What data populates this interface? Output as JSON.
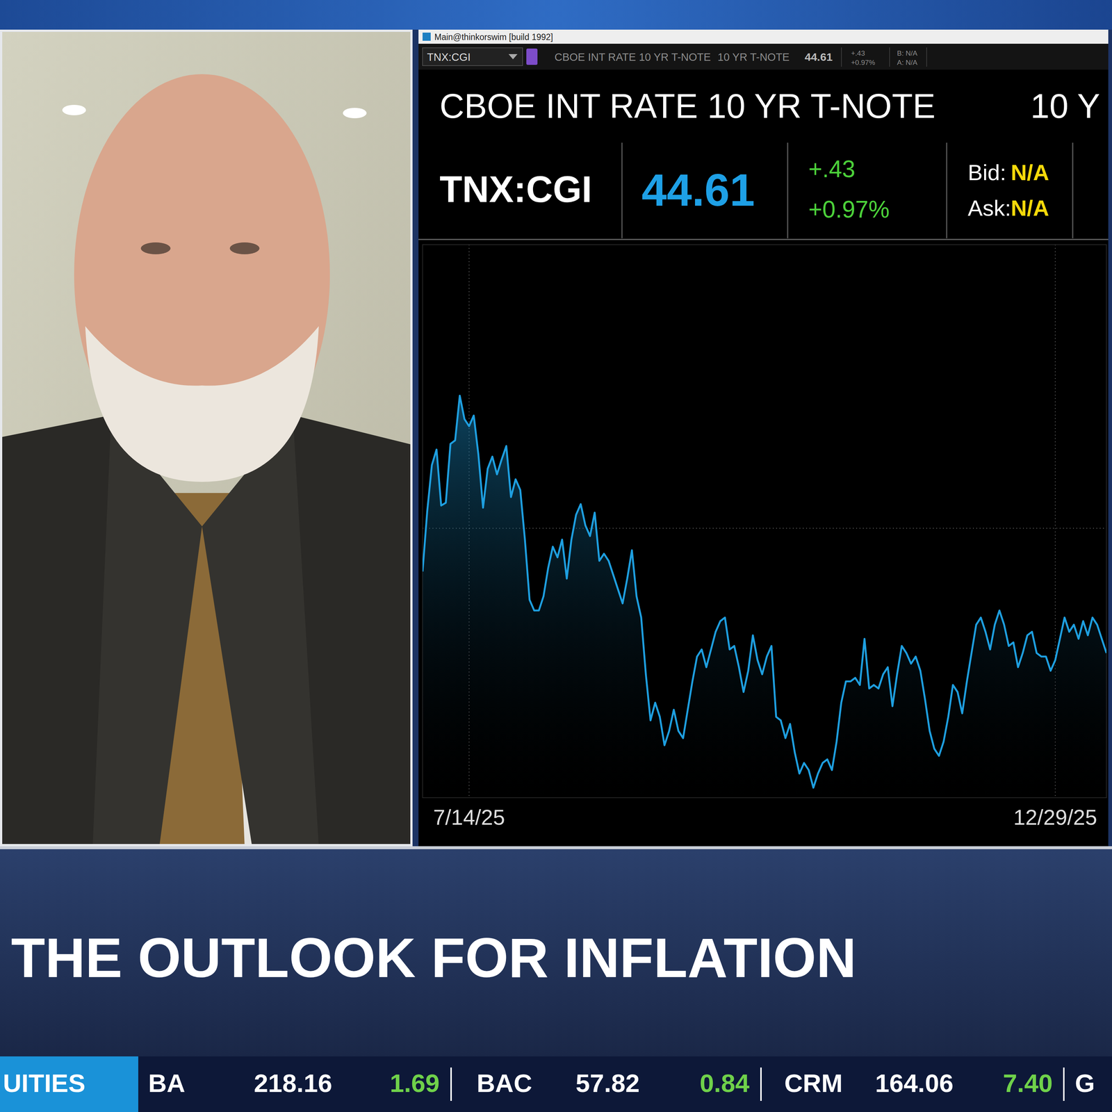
{
  "window": {
    "title": "Main@thinkorswim [build 1992]"
  },
  "toolbar": {
    "symbol": "TNX:CGI",
    "description": "CBOE INT RATE 10 YR T-NOTE",
    "short_name": "10 YR T-NOTE",
    "last": 44.61,
    "change": "+.43",
    "change_pct": "+0.97%",
    "bid": "B: N/A",
    "ask": "A: N/A"
  },
  "quote": {
    "title": "CBOE INT RATE 10 YR T-NOTE",
    "title_right": "10 Y",
    "symbol": "TNX:CGI",
    "last": 44.61,
    "change": "+.43",
    "change_pct": "+0.97%",
    "bid_label": "Bid:",
    "bid": "N/A",
    "ask_label": "Ask:",
    "ask": "N/A"
  },
  "chart_data": {
    "type": "area",
    "categories": [
      null,
      null,
      null,
      null,
      null,
      null,
      null,
      null,
      null,
      null,
      "7/14/25",
      null,
      null,
      null,
      null,
      null,
      null,
      null,
      null,
      null,
      null,
      null,
      null,
      null,
      null,
      null,
      null,
      null,
      null,
      null,
      null,
      null,
      null,
      null,
      null,
      null,
      null,
      null,
      null,
      null,
      null,
      null,
      null,
      null,
      null,
      null,
      null,
      null,
      null,
      null,
      null,
      null,
      null,
      null,
      null,
      null,
      null,
      null,
      null,
      null,
      null,
      null,
      null,
      null,
      null,
      null,
      null,
      null,
      null,
      null,
      null,
      null,
      null,
      null,
      null,
      null,
      null,
      null,
      null,
      null,
      null,
      null,
      null,
      null,
      null,
      null,
      null,
      null,
      null,
      null,
      null,
      null,
      null,
      null,
      null,
      null,
      null,
      null,
      null,
      null,
      null,
      null,
      null,
      null,
      null,
      null,
      null,
      null,
      null,
      null,
      null,
      null,
      null,
      null,
      null,
      null,
      null,
      null,
      null,
      null,
      null,
      null,
      null,
      null,
      null,
      null,
      null,
      null,
      null,
      null,
      null,
      null,
      null,
      null,
      null,
      null,
      "12/29/25",
      null,
      null,
      null,
      null,
      null,
      null,
      null,
      null,
      null,
      null,
      null
    ],
    "series": [
      {
        "color": "#1e9fe0",
        "values": [
          42.39,
          43.24,
          43.89,
          44.11,
          43.32,
          43.36,
          44.19,
          44.24,
          44.87,
          44.54,
          44.44,
          44.59,
          44.04,
          43.29,
          43.84,
          44.01,
          43.76,
          43.97,
          44.16,
          43.44,
          43.69,
          43.54,
          42.84,
          41.99,
          41.84,
          41.84,
          42.04,
          42.44,
          42.74,
          42.59,
          42.84,
          42.29,
          42.84,
          43.19,
          43.34,
          43.04,
          42.89,
          43.22,
          42.54,
          42.64,
          42.54,
          42.34,
          42.14,
          41.94,
          42.29,
          42.69,
          42.04,
          41.74,
          40.94,
          40.29,
          40.54,
          40.34,
          39.94,
          40.14,
          40.44,
          40.14,
          40.04,
          40.44,
          40.84,
          41.19,
          41.29,
          41.04,
          41.29,
          41.54,
          41.69,
          41.74,
          41.29,
          41.34,
          41.04,
          40.69,
          40.99,
          41.49,
          41.14,
          40.94,
          41.19,
          41.34,
          40.34,
          40.29,
          40.04,
          40.24,
          39.84,
          39.54,
          39.69,
          39.59,
          39.34,
          39.54,
          39.69,
          39.74,
          39.59,
          39.99,
          40.54,
          40.84,
          40.84,
          40.89,
          40.79,
          41.44,
          40.74,
          40.79,
          40.74,
          40.94,
          41.04,
          40.49,
          40.94,
          41.34,
          41.24,
          41.09,
          41.19,
          40.99,
          40.59,
          40.14,
          39.89,
          39.79,
          39.99,
          40.34,
          40.79,
          40.69,
          40.39,
          40.84,
          41.24,
          41.64,
          41.74,
          41.54,
          41.29,
          41.64,
          41.84,
          41.64,
          41.34,
          41.39,
          41.04,
          41.24,
          41.49,
          41.54,
          41.24,
          41.19,
          41.19,
          40.99,
          41.14,
          41.44,
          41.74,
          41.54,
          41.64,
          41.44,
          41.69,
          41.49,
          41.74,
          41.64,
          41.44,
          41.24
        ]
      }
    ],
    "ylim": [
      39.2,
      47.0
    ],
    "yticks": [
      43
    ],
    "grid": true,
    "tick_labels": "x"
  },
  "headline": "THE OUTLOOK FOR INFLATION",
  "ticker": {
    "label": "UITIES",
    "items": [
      {
        "symbol": "BA",
        "price": "218.16",
        "change": "1.69"
      },
      {
        "symbol": "BAC",
        "price": "57.82",
        "change": "0.84"
      },
      {
        "symbol": "CRM",
        "price": "164.06",
        "change": "7.40"
      }
    ],
    "next": "G"
  }
}
